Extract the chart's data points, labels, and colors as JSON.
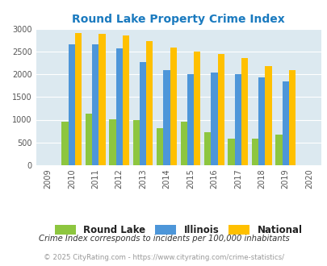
{
  "title": "Round Lake Property Crime Index",
  "years": [
    2009,
    2010,
    2011,
    2012,
    2013,
    2014,
    2015,
    2016,
    2017,
    2018,
    2019,
    2020
  ],
  "round_lake": [
    null,
    950,
    1140,
    1010,
    990,
    820,
    950,
    730,
    590,
    590,
    670,
    null
  ],
  "illinois": [
    null,
    2660,
    2660,
    2580,
    2280,
    2090,
    2000,
    2050,
    2010,
    1940,
    1840,
    null
  ],
  "national": [
    null,
    2920,
    2900,
    2860,
    2740,
    2600,
    2500,
    2460,
    2360,
    2190,
    2090,
    null
  ],
  "round_lake_color": "#8dc63f",
  "illinois_color": "#4d96d9",
  "national_color": "#ffc000",
  "bg_color": "#dce9f0",
  "title_color": "#1a7abf",
  "ylim": [
    0,
    3000
  ],
  "yticks": [
    0,
    500,
    1000,
    1500,
    2000,
    2500,
    3000
  ],
  "legend_labels": [
    "Round Lake",
    "Illinois",
    "National"
  ],
  "footnote1": "Crime Index corresponds to incidents per 100,000 inhabitants",
  "footnote2": "© 2025 CityRating.com - https://www.cityrating.com/crime-statistics/",
  "bar_width": 0.28
}
